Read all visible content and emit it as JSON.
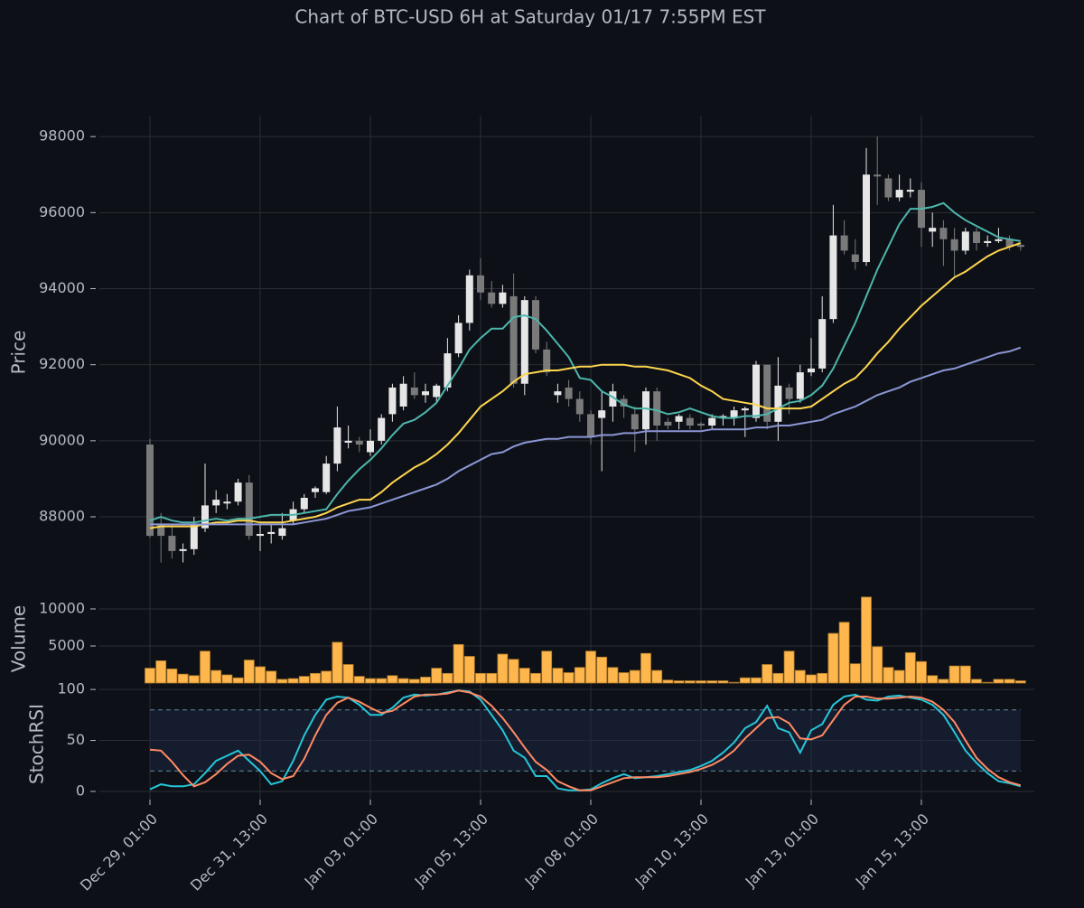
{
  "chart_data": [
    {
      "type": "candlestick",
      "title": "Chart of BTC-USD 6H at Saturday 01/17 7:55PM EST",
      "ylabel": "Price",
      "open": [
        89900,
        87800,
        87500,
        87100,
        87150,
        87700,
        88300,
        88350,
        88400,
        88900,
        87500,
        87550,
        87500,
        87900,
        88200,
        88650,
        88650,
        89400,
        89950,
        90000,
        89700,
        90000,
        90700,
        90900,
        91400,
        91200,
        91150,
        91400,
        92300,
        93100,
        94350,
        93900,
        93600,
        93800,
        91500,
        93700,
        92400,
        91200,
        91400,
        91100,
        90700,
        90600,
        90900,
        91100,
        90700,
        90300,
        91300,
        90500,
        90500,
        90600,
        90450,
        90400,
        90600,
        90600,
        90800,
        90600,
        92000,
        90500,
        91400,
        91100,
        91800,
        91900,
        93200,
        95400,
        94900,
        94700,
        97000,
        96900,
        96400,
        96550,
        96600,
        95500,
        95600,
        95300,
        95000,
        95500,
        95200,
        95250,
        95300,
        95150
      ],
      "high": [
        90050,
        88100,
        87800,
        87300,
        88000,
        89400,
        88700,
        88600,
        89000,
        89100,
        87800,
        87800,
        88100,
        88400,
        88600,
        88800,
        89600,
        90900,
        90400,
        90100,
        90300,
        90700,
        91500,
        91700,
        91800,
        91500,
        91500,
        92700,
        93300,
        94500,
        94800,
        94200,
        94100,
        94400,
        93800,
        93800,
        92600,
        91500,
        91600,
        91300,
        90800,
        91300,
        91500,
        91200,
        90900,
        91400,
        91400,
        90600,
        90700,
        90700,
        90500,
        90700,
        90700,
        90900,
        90900,
        92100,
        92000,
        92200,
        91500,
        92000,
        92700,
        93800,
        96200,
        95800,
        95300,
        97700,
        98000,
        97000,
        97000,
        96900,
        96800,
        96000,
        95800,
        95600,
        95600,
        95600,
        95400,
        95600,
        95400,
        95200
      ],
      "low": [
        87450,
        86800,
        86900,
        86800,
        87000,
        87600,
        88100,
        88200,
        88300,
        87400,
        87100,
        87300,
        87400,
        87800,
        88100,
        88500,
        88600,
        89200,
        89800,
        89700,
        89600,
        89900,
        90500,
        90800,
        91100,
        91000,
        91000,
        91300,
        92200,
        92900,
        93700,
        93500,
        93500,
        91400,
        91200,
        92300,
        91700,
        91000,
        90900,
        90500,
        89900,
        89200,
        90500,
        90600,
        89700,
        89900,
        90000,
        90300,
        90300,
        90300,
        90300,
        90300,
        90400,
        90400,
        90100,
        90500,
        90300,
        90000,
        90700,
        91000,
        91700,
        91800,
        93100,
        94900,
        94500,
        94600,
        96200,
        96300,
        96300,
        96400,
        95100,
        95100,
        94600,
        94300,
        94900,
        95000,
        95100,
        95200,
        95000,
        95000
      ],
      "close": [
        87500,
        87500,
        87100,
        87150,
        87800,
        88300,
        88450,
        88400,
        88900,
        87500,
        87550,
        87600,
        87700,
        88200,
        88500,
        88750,
        89400,
        90350,
        90000,
        89900,
        90000,
        90600,
        91400,
        91500,
        91200,
        91300,
        91450,
        92300,
        93100,
        94350,
        93900,
        93600,
        93900,
        91500,
        93700,
        92400,
        91800,
        91300,
        91100,
        90700,
        90100,
        90800,
        91300,
        90900,
        90300,
        91300,
        90400,
        90400,
        90650,
        90400,
        90400,
        90600,
        90650,
        90800,
        90850,
        92000,
        90500,
        91450,
        91100,
        91800,
        91900,
        93200,
        95400,
        95000,
        94700,
        97000,
        96950,
        96400,
        96600,
        96600,
        95600,
        95600,
        95300,
        95000,
        95500,
        95200,
        95250,
        95300,
        95100,
        95100
      ],
      "up_color": "#e6e6e6",
      "down_color": "#7a7a7a",
      "series": [
        {
          "color": "#4db6ac",
          "values": [
            87900,
            88000,
            87900,
            87850,
            87850,
            87900,
            87950,
            87900,
            87950,
            87950,
            88000,
            88050,
            88050,
            88050,
            88100,
            88150,
            88200,
            88600,
            88950,
            89250,
            89500,
            89800,
            90150,
            90450,
            90550,
            90750,
            91000,
            91450,
            91900,
            92400,
            92700,
            92950,
            92950,
            93250,
            93300,
            93200,
            92900,
            92550,
            92200,
            91650,
            91600,
            91300,
            91150,
            90950,
            90850,
            90850,
            90800,
            90700,
            90750,
            90850,
            90750,
            90650,
            90600,
            90600,
            90650,
            90650,
            90700,
            90850,
            91000,
            91050,
            91200,
            91450,
            91900,
            92500,
            93100,
            93800,
            94500,
            95100,
            95700,
            96100,
            96100,
            96150,
            96250,
            96000,
            95800,
            95650,
            95500,
            95350,
            95300,
            95250
          ]
        },
        {
          "color": "#ffd54f",
          "values": [
            87700,
            87750,
            87750,
            87750,
            87750,
            87800,
            87850,
            87850,
            87900,
            87900,
            87850,
            87850,
            87850,
            87900,
            87950,
            88000,
            88100,
            88250,
            88350,
            88450,
            88450,
            88650,
            88900,
            89100,
            89300,
            89450,
            89650,
            89900,
            90200,
            90550,
            90900,
            91100,
            91300,
            91550,
            91750,
            91800,
            91850,
            91850,
            91900,
            91950,
            91950,
            92000,
            92000,
            92000,
            91950,
            91950,
            91900,
            91850,
            91750,
            91650,
            91450,
            91300,
            91100,
            91050,
            91000,
            90950,
            90850,
            90850,
            90850,
            90850,
            90900,
            91100,
            91300,
            91500,
            91650,
            91950,
            92300,
            92600,
            92950,
            93250,
            93550,
            93800,
            94050,
            94300,
            94450,
            94650,
            94850,
            95000,
            95100,
            95200
          ]
        },
        {
          "color": "#8c96d6",
          "values": [
            87800,
            87800,
            87800,
            87800,
            87800,
            87800,
            87800,
            87800,
            87800,
            87800,
            87800,
            87800,
            87800,
            87800,
            87850,
            87900,
            87950,
            88050,
            88150,
            88200,
            88250,
            88350,
            88450,
            88550,
            88650,
            88750,
            88850,
            89000,
            89200,
            89350,
            89500,
            89650,
            89700,
            89850,
            89950,
            90000,
            90050,
            90050,
            90100,
            90100,
            90100,
            90150,
            90150,
            90200,
            90200,
            90250,
            90250,
            90250,
            90250,
            90250,
            90250,
            90300,
            90300,
            90300,
            90300,
            90350,
            90350,
            90400,
            90400,
            90450,
            90500,
            90550,
            90700,
            90800,
            90900,
            91050,
            91200,
            91300,
            91400,
            91550,
            91650,
            91750,
            91850,
            91900,
            92000,
            92100,
            92200,
            92300,
            92350,
            92450
          ]
        }
      ],
      "ylim": [
        86100,
        98550
      ],
      "yticks": [
        88000,
        90000,
        92000,
        94000,
        96000,
        98000
      ],
      "grid": true
    },
    {
      "type": "bar",
      "ylabel": "Volume",
      "color": "#ffb74d",
      "edgecolor": "#b07a2a",
      "values": [
        2000,
        3000,
        1900,
        1200,
        1000,
        4300,
        1700,
        1100,
        700,
        3100,
        2200,
        1600,
        500,
        600,
        900,
        1300,
        1600,
        5500,
        2500,
        900,
        600,
        600,
        1000,
        600,
        500,
        800,
        2000,
        1300,
        5200,
        3600,
        1300,
        1300,
        3900,
        3200,
        2000,
        1300,
        4300,
        2000,
        1400,
        2100,
        4300,
        3500,
        2100,
        1400,
        1700,
        4000,
        1700,
        400,
        300,
        300,
        300,
        300,
        300,
        100,
        700,
        700,
        2500,
        1300,
        4300,
        1700,
        1100,
        1300,
        6700,
        8200,
        2600,
        11600,
        4900,
        2100,
        1700,
        4100,
        2900,
        1000,
        500,
        2300,
        2300,
        500,
        100,
        500,
        500,
        300
      ],
      "ylim": [
        -730,
        12680
      ],
      "yticks": [
        5000,
        10000
      ],
      "grid": true
    },
    {
      "type": "line",
      "ylabel": "StochRSI",
      "categories": [
        "Dec 29, 01:00",
        null,
        null,
        null,
        null,
        null,
        null,
        null,
        null,
        null,
        "Dec 31, 13:00",
        null,
        null,
        null,
        null,
        null,
        null,
        null,
        null,
        null,
        "Jan 03, 01:00",
        null,
        null,
        null,
        null,
        null,
        null,
        null,
        null,
        null,
        "Jan 05, 13:00",
        null,
        null,
        null,
        null,
        null,
        null,
        null,
        null,
        null,
        "Jan 08, 01:00",
        null,
        null,
        null,
        null,
        null,
        null,
        null,
        null,
        null,
        "Jan 10, 13:00",
        null,
        null,
        null,
        null,
        null,
        null,
        null,
        null,
        null,
        "Jan 13, 01:00",
        null,
        null,
        null,
        null,
        null,
        null,
        null,
        null,
        null,
        "Jan 15, 13:00",
        null,
        null,
        null,
        null,
        null,
        null,
        null,
        null,
        null
      ],
      "series": [
        {
          "color": "#26c6da",
          "values": [
            2,
            7,
            5,
            5,
            7,
            18,
            30,
            35,
            40,
            30,
            20,
            7,
            10,
            30,
            55,
            75,
            90,
            93,
            92,
            85,
            75,
            75,
            82,
            92,
            95,
            94,
            95,
            97,
            99,
            98,
            90,
            75,
            60,
            40,
            33,
            15,
            15,
            3,
            1,
            1,
            2,
            8,
            13,
            17,
            13,
            14,
            15,
            17,
            19,
            21,
            25,
            30,
            38,
            48,
            62,
            68,
            84,
            62,
            58,
            38,
            60,
            66,
            85,
            93,
            95,
            90,
            89,
            93,
            94,
            92,
            90,
            85,
            75,
            58,
            40,
            28,
            18,
            10,
            8,
            5
          ]
        },
        {
          "color": "#ff8a65",
          "values": [
            41,
            40,
            29,
            16,
            5,
            9,
            17,
            27,
            35,
            36,
            29,
            18,
            12,
            15,
            32,
            55,
            75,
            87,
            92,
            88,
            82,
            77,
            79,
            86,
            93,
            95,
            95,
            96,
            99,
            97,
            93,
            84,
            72,
            58,
            43,
            29,
            21,
            10,
            5,
            1,
            1,
            5,
            9,
            13,
            14,
            14,
            14,
            15,
            17,
            19,
            22,
            26,
            32,
            40,
            52,
            62,
            72,
            73,
            67,
            52,
            51,
            55,
            70,
            85,
            93,
            93,
            91,
            91,
            92,
            93,
            92,
            88,
            80,
            68,
            50,
            33,
            22,
            14,
            9,
            6
          ]
        }
      ],
      "hlines": [
        20,
        80
      ],
      "ylim": [
        -8,
        101
      ],
      "yticks": [
        0,
        50,
        100
      ],
      "grid": true
    }
  ]
}
